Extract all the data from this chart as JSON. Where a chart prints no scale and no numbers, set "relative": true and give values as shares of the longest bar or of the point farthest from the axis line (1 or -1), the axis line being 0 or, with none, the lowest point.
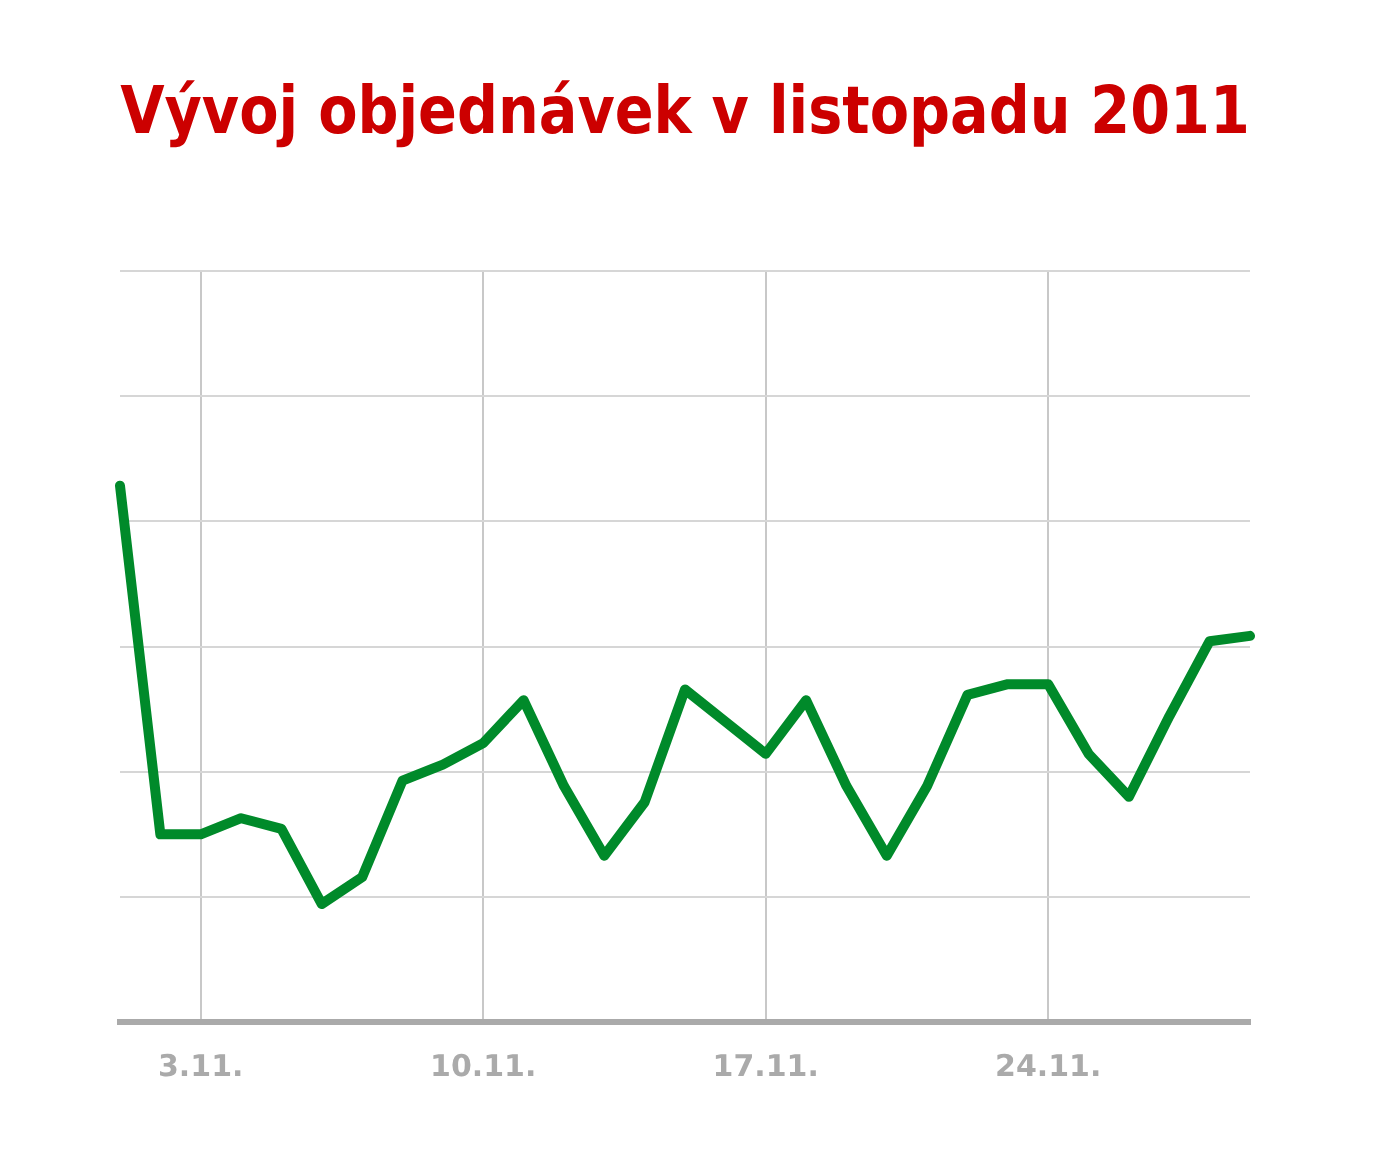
{
  "chart_data": {
    "type": "line",
    "title": "Vývoj objednávek v listopadu 2011",
    "categories": [
      null,
      null,
      "3.11.",
      null,
      null,
      null,
      null,
      null,
      null,
      "10.11.",
      null,
      null,
      null,
      null,
      null,
      null,
      "17.11.",
      null,
      null,
      null,
      null,
      null,
      null,
      "24.11.",
      null,
      null,
      null,
      null,
      null
    ],
    "values": [
      1,
      0.35,
      0.35,
      0.38,
      0.36,
      0.22,
      0.27,
      0.45,
      0.48,
      0.52,
      0.6,
      0.44,
      0.31,
      0.41,
      0.62,
      0.56,
      0.5,
      0.6,
      0.44,
      0.31,
      0.44,
      0.61,
      0.63,
      0.63,
      0.5,
      0.42,
      0.57,
      0.71,
      0.72
    ],
    "color": "#008a2a",
    "relative": true,
    "grid": true,
    "marker": "none"
  }
}
